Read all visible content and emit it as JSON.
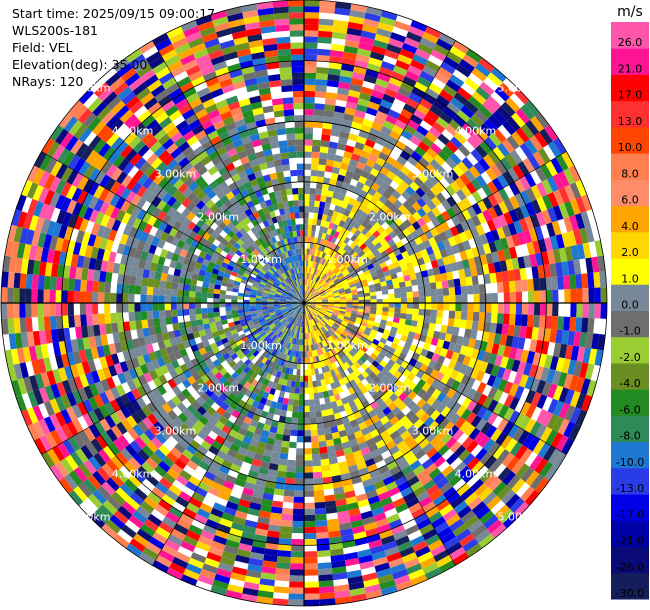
{
  "header": {
    "start_time": "Start time: 2025/09/15 09:00:17",
    "instrument": "WLS200s-181",
    "field": "Field: VEL",
    "elevation": "Elevation(deg): 35.00",
    "nrays": "NRays: 120"
  },
  "chart_data": {
    "type": "heatmap",
    "projection": "polar-ppi",
    "field": "VEL",
    "unit_label": "m/s",
    "n_rays": 120,
    "max_range_km": 5.0,
    "range_rings": [
      {
        "value": 1.0,
        "label": "1.00km"
      },
      {
        "value": 2.0,
        "label": "2.00km"
      },
      {
        "value": 3.0,
        "label": "3.00km"
      },
      {
        "value": 4.0,
        "label": "4.00km"
      },
      {
        "value": 5.0,
        "label": "5.00km"
      }
    ],
    "colorbar": {
      "title": "m/s",
      "bins": [
        {
          "label": "-30.0",
          "color": "#141e5a"
        },
        {
          "label": "-26.0",
          "color": "#0a0a78"
        },
        {
          "label": "-21.0",
          "color": "#0000a8"
        },
        {
          "label": "-17.0",
          "color": "#0000e6"
        },
        {
          "label": "-13.0",
          "color": "#2a3ce6"
        },
        {
          "label": "-10.0",
          "color": "#1e78d2"
        },
        {
          "label": "-8.0",
          "color": "#2e8b57"
        },
        {
          "label": "-6.0",
          "color": "#228b22"
        },
        {
          "label": "-4.0",
          "color": "#6b8e23"
        },
        {
          "label": "-2.0",
          "color": "#9acd32"
        },
        {
          "label": "-1.0",
          "color": "#6e6e6e"
        },
        {
          "label": "0.0",
          "color": "#778899"
        },
        {
          "label": "1.0",
          "color": "#ffff00"
        },
        {
          "label": "2.0",
          "color": "#ffd700"
        },
        {
          "label": "4.0",
          "color": "#ffa500"
        },
        {
          "label": "6.0",
          "color": "#ff8c69"
        },
        {
          "label": "8.0",
          "color": "#ff7f50"
        },
        {
          "label": "10.0",
          "color": "#ff4500"
        },
        {
          "label": "13.0",
          "color": "#ff3030"
        },
        {
          "label": "17.0",
          "color": "#ff0000"
        },
        {
          "label": "21.0",
          "color": "#ff1493"
        },
        {
          "label": "26.0",
          "color": "#ff55aa"
        }
      ]
    }
  }
}
